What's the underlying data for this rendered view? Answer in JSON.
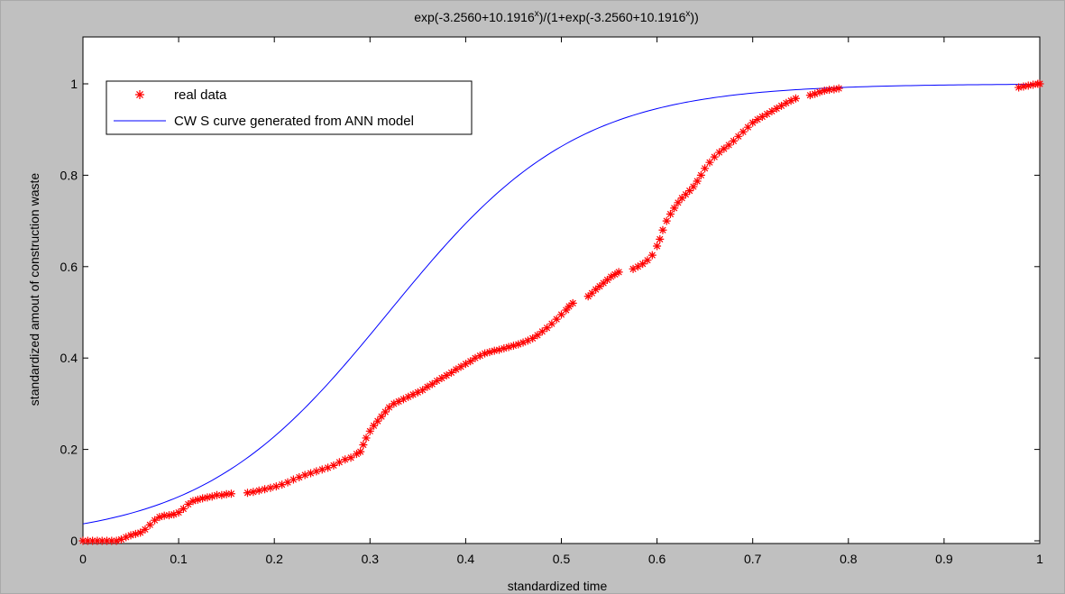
{
  "chart_data": {
    "type": "scatter",
    "title": {
      "part1": "exp(-3.2560+10.1916",
      "sup1": "x",
      "part2": ")/(1+exp(-3.2560+10.1916",
      "sup2": "x",
      "part3": "))"
    },
    "xlabel": "standardized time",
    "ylabel": "standardized amout of construction waste",
    "xlim": [
      0,
      1
    ],
    "ylim": [
      -0.01,
      1.1
    ],
    "xticks": [
      0,
      0.1,
      0.2,
      0.3,
      0.4,
      0.5,
      0.6,
      0.7,
      0.8,
      0.9,
      1
    ],
    "xtick_labels": [
      "0",
      "0.1",
      "0.2",
      "0.3",
      "0.4",
      "0.5",
      "0.6",
      "0.7",
      "0.8",
      "0.9",
      "1"
    ],
    "yticks": [
      0,
      0.2,
      0.4,
      0.6,
      0.8,
      1
    ],
    "ytick_labels": [
      "0",
      "0.2",
      "0.4",
      "0.6",
      "0.8",
      "1"
    ],
    "grid": false,
    "legend_position": "top-left",
    "series": [
      {
        "name": "real data",
        "kind": "scatter",
        "marker": "*",
        "color": "#ff0000",
        "points": [
          [
            0.0,
            0.0
          ],
          [
            0.005,
            0.0
          ],
          [
            0.01,
            0.0
          ],
          [
            0.015,
            0.0
          ],
          [
            0.02,
            0.0
          ],
          [
            0.025,
            0.0
          ],
          [
            0.03,
            0.0
          ],
          [
            0.035,
            0.0
          ],
          [
            0.04,
            0.003
          ],
          [
            0.045,
            0.008
          ],
          [
            0.05,
            0.012
          ],
          [
            0.055,
            0.015
          ],
          [
            0.06,
            0.018
          ],
          [
            0.065,
            0.025
          ],
          [
            0.07,
            0.035
          ],
          [
            0.075,
            0.045
          ],
          [
            0.08,
            0.052
          ],
          [
            0.085,
            0.055
          ],
          [
            0.09,
            0.056
          ],
          [
            0.095,
            0.058
          ],
          [
            0.1,
            0.062
          ],
          [
            0.105,
            0.07
          ],
          [
            0.11,
            0.08
          ],
          [
            0.115,
            0.087
          ],
          [
            0.12,
            0.09
          ],
          [
            0.125,
            0.093
          ],
          [
            0.13,
            0.095
          ],
          [
            0.135,
            0.097
          ],
          [
            0.14,
            0.1
          ],
          [
            0.145,
            0.1
          ],
          [
            0.15,
            0.102
          ],
          [
            0.155,
            0.103
          ],
          [
            0.172,
            0.105
          ],
          [
            0.178,
            0.107
          ],
          [
            0.184,
            0.11
          ],
          [
            0.19,
            0.113
          ],
          [
            0.196,
            0.116
          ],
          [
            0.202,
            0.119
          ],
          [
            0.208,
            0.123
          ],
          [
            0.214,
            0.128
          ],
          [
            0.22,
            0.134
          ],
          [
            0.226,
            0.139
          ],
          [
            0.232,
            0.144
          ],
          [
            0.238,
            0.148
          ],
          [
            0.244,
            0.152
          ],
          [
            0.25,
            0.156
          ],
          [
            0.256,
            0.16
          ],
          [
            0.262,
            0.165
          ],
          [
            0.268,
            0.172
          ],
          [
            0.274,
            0.178
          ],
          [
            0.28,
            0.182
          ],
          [
            0.286,
            0.19
          ],
          [
            0.29,
            0.195
          ],
          [
            0.293,
            0.21
          ],
          [
            0.296,
            0.225
          ],
          [
            0.3,
            0.24
          ],
          [
            0.304,
            0.252
          ],
          [
            0.308,
            0.262
          ],
          [
            0.312,
            0.272
          ],
          [
            0.316,
            0.282
          ],
          [
            0.32,
            0.292
          ],
          [
            0.325,
            0.3
          ],
          [
            0.33,
            0.305
          ],
          [
            0.335,
            0.31
          ],
          [
            0.34,
            0.315
          ],
          [
            0.345,
            0.32
          ],
          [
            0.35,
            0.325
          ],
          [
            0.355,
            0.33
          ],
          [
            0.36,
            0.337
          ],
          [
            0.365,
            0.343
          ],
          [
            0.37,
            0.35
          ],
          [
            0.375,
            0.356
          ],
          [
            0.38,
            0.362
          ],
          [
            0.385,
            0.368
          ],
          [
            0.39,
            0.375
          ],
          [
            0.395,
            0.381
          ],
          [
            0.4,
            0.387
          ],
          [
            0.405,
            0.393
          ],
          [
            0.41,
            0.4
          ],
          [
            0.415,
            0.405
          ],
          [
            0.42,
            0.41
          ],
          [
            0.425,
            0.413
          ],
          [
            0.43,
            0.416
          ],
          [
            0.435,
            0.418
          ],
          [
            0.44,
            0.421
          ],
          [
            0.445,
            0.424
          ],
          [
            0.45,
            0.427
          ],
          [
            0.455,
            0.43
          ],
          [
            0.46,
            0.434
          ],
          [
            0.465,
            0.438
          ],
          [
            0.47,
            0.443
          ],
          [
            0.475,
            0.45
          ],
          [
            0.48,
            0.458
          ],
          [
            0.485,
            0.466
          ],
          [
            0.49,
            0.475
          ],
          [
            0.495,
            0.485
          ],
          [
            0.5,
            0.495
          ],
          [
            0.505,
            0.505
          ],
          [
            0.508,
            0.513
          ],
          [
            0.512,
            0.52
          ],
          [
            0.528,
            0.535
          ],
          [
            0.532,
            0.542
          ],
          [
            0.536,
            0.55
          ],
          [
            0.54,
            0.557
          ],
          [
            0.544,
            0.564
          ],
          [
            0.548,
            0.571
          ],
          [
            0.552,
            0.578
          ],
          [
            0.556,
            0.583
          ],
          [
            0.56,
            0.588
          ],
          [
            0.575,
            0.595
          ],
          [
            0.58,
            0.6
          ],
          [
            0.585,
            0.606
          ],
          [
            0.59,
            0.614
          ],
          [
            0.595,
            0.625
          ],
          [
            0.6,
            0.645
          ],
          [
            0.603,
            0.66
          ],
          [
            0.606,
            0.68
          ],
          [
            0.61,
            0.7
          ],
          [
            0.614,
            0.715
          ],
          [
            0.618,
            0.728
          ],
          [
            0.622,
            0.74
          ],
          [
            0.626,
            0.75
          ],
          [
            0.63,
            0.758
          ],
          [
            0.634,
            0.766
          ],
          [
            0.638,
            0.775
          ],
          [
            0.642,
            0.787
          ],
          [
            0.646,
            0.8
          ],
          [
            0.65,
            0.815
          ],
          [
            0.655,
            0.828
          ],
          [
            0.66,
            0.84
          ],
          [
            0.665,
            0.85
          ],
          [
            0.67,
            0.858
          ],
          [
            0.675,
            0.866
          ],
          [
            0.68,
            0.875
          ],
          [
            0.685,
            0.885
          ],
          [
            0.69,
            0.895
          ],
          [
            0.695,
            0.905
          ],
          [
            0.7,
            0.915
          ],
          [
            0.705,
            0.922
          ],
          [
            0.71,
            0.928
          ],
          [
            0.715,
            0.934
          ],
          [
            0.72,
            0.94
          ],
          [
            0.725,
            0.946
          ],
          [
            0.73,
            0.952
          ],
          [
            0.735,
            0.958
          ],
          [
            0.74,
            0.963
          ],
          [
            0.745,
            0.968
          ],
          [
            0.76,
            0.975
          ],
          [
            0.765,
            0.978
          ],
          [
            0.77,
            0.982
          ],
          [
            0.775,
            0.985
          ],
          [
            0.78,
            0.987
          ],
          [
            0.785,
            0.988
          ],
          [
            0.79,
            0.99
          ],
          [
            0.978,
            0.992
          ],
          [
            0.983,
            0.994
          ],
          [
            0.988,
            0.996
          ],
          [
            0.993,
            0.998
          ],
          [
            0.998,
            1.0
          ],
          [
            1.0,
            1.0
          ]
        ]
      },
      {
        "name": "CW S curve generated from ANN model",
        "kind": "line",
        "color": "#0000ff",
        "formula": {
          "a": -3.256,
          "b": 10.1916
        }
      }
    ]
  }
}
